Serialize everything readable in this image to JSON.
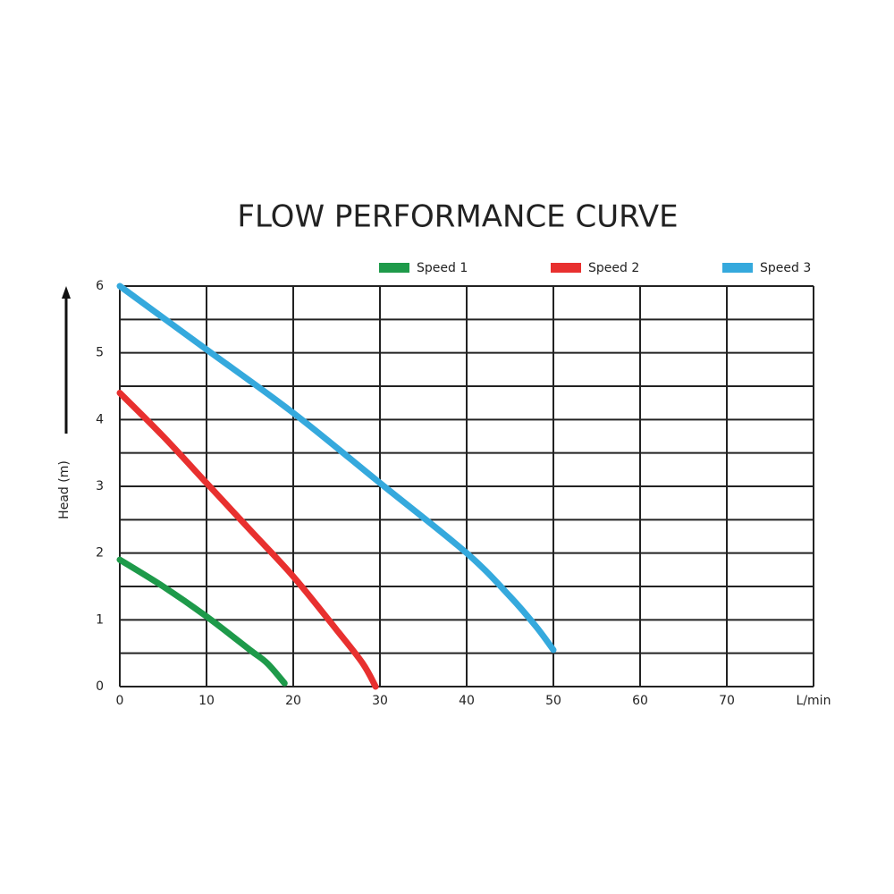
{
  "chart_data": {
    "type": "line",
    "title": "FLOW PERFORMANCE CURVE",
    "y_label": "Head (m)",
    "x_label": "L/min",
    "xlim": [
      0,
      80
    ],
    "ylim": [
      0,
      6
    ],
    "xticks": [
      0,
      10,
      20,
      30,
      40,
      50,
      60,
      70
    ],
    "yticks": [
      0,
      1,
      2,
      3,
      4,
      5,
      6
    ],
    "grid": true,
    "ygrid_minor": [
      0.5,
      1.5,
      2.5,
      3.5,
      4.5,
      5.5
    ],
    "xgrid_extra": [
      80
    ],
    "legend": "top",
    "series": [
      {
        "name": "Speed 1",
        "color": "#1e9a4a",
        "x": [
          0,
          5,
          10,
          15,
          17,
          19
        ],
        "values": [
          1.9,
          1.5,
          1.05,
          0.55,
          0.35,
          0.05
        ]
      },
      {
        "name": "Speed 2",
        "color": "#e8302f",
        "x": [
          0,
          5,
          10,
          15,
          20,
          25,
          28,
          29.5
        ],
        "values": [
          4.4,
          3.75,
          3.05,
          2.35,
          1.65,
          0.85,
          0.35,
          0
        ]
      },
      {
        "name": "Speed 3",
        "color": "#35a9dd",
        "x": [
          0,
          10,
          20,
          30,
          40,
          45,
          48,
          50
        ],
        "values": [
          6,
          5.05,
          4.1,
          3.05,
          2.0,
          1.35,
          0.9,
          0.55
        ]
      }
    ]
  }
}
